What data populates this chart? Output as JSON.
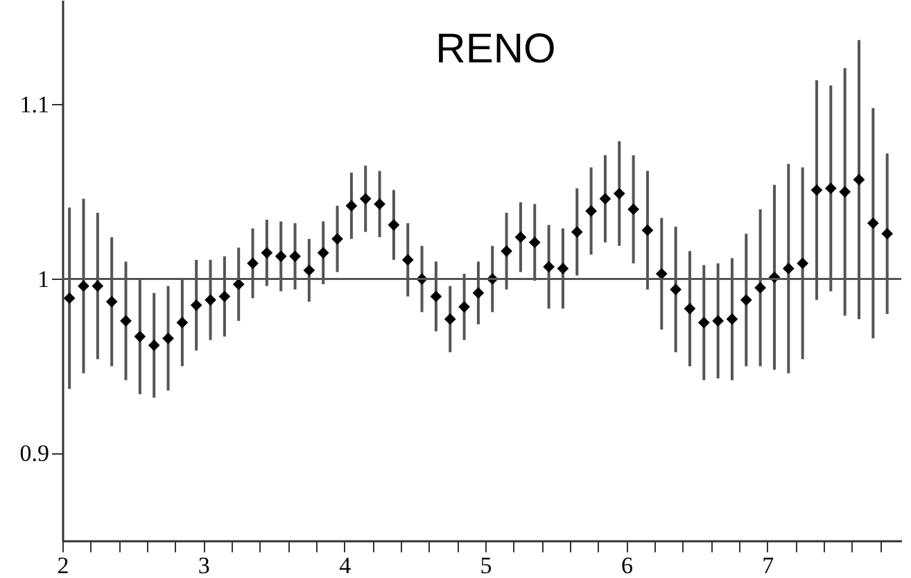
{
  "chart_data": {
    "type": "scatter",
    "title": "RENO",
    "x": [
      2.05,
      2.15,
      2.25,
      2.35,
      2.45,
      2.55,
      2.65,
      2.75,
      2.85,
      2.95,
      3.05,
      3.15,
      3.25,
      3.35,
      3.45,
      3.55,
      3.65,
      3.75,
      3.85,
      3.95,
      4.05,
      4.15,
      4.25,
      4.35,
      4.45,
      4.55,
      4.65,
      4.75,
      4.85,
      4.95,
      5.05,
      5.15,
      5.25,
      5.35,
      5.45,
      5.55,
      5.65,
      5.75,
      5.85,
      5.95,
      6.05,
      6.15,
      6.25,
      6.35,
      6.45,
      6.55,
      6.65,
      6.75,
      6.85,
      6.95,
      7.05,
      7.15,
      7.25,
      7.35,
      7.45,
      7.55,
      7.65,
      7.75,
      7.85
    ],
    "series": [
      {
        "color": "#000000",
        "values": [
          0.989,
          0.996,
          0.996,
          0.987,
          0.976,
          0.967,
          0.962,
          0.966,
          0.975,
          0.985,
          0.988,
          0.99,
          0.997,
          1.009,
          1.015,
          1.013,
          1.013,
          1.005,
          1.015,
          1.023,
          1.042,
          1.046,
          1.043,
          1.031,
          1.011,
          1.0,
          0.99,
          0.977,
          0.984,
          0.992,
          1.0,
          1.016,
          1.024,
          1.021,
          1.007,
          1.006,
          1.027,
          1.039,
          1.046,
          1.049,
          1.04,
          1.028,
          1.003,
          0.994,
          0.983,
          0.975,
          0.976,
          0.977,
          0.988,
          0.995,
          1.001,
          1.006,
          1.009,
          1.051,
          1.052,
          1.05,
          1.057,
          1.032,
          1.026
        ],
        "errors": [
          0.052,
          0.05,
          0.042,
          0.037,
          0.034,
          0.033,
          0.03,
          0.03,
          0.025,
          0.026,
          0.023,
          0.023,
          0.021,
          0.02,
          0.019,
          0.02,
          0.019,
          0.018,
          0.018,
          0.019,
          0.019,
          0.019,
          0.019,
          0.02,
          0.021,
          0.019,
          0.02,
          0.019,
          0.019,
          0.018,
          0.019,
          0.022,
          0.02,
          0.022,
          0.024,
          0.023,
          0.025,
          0.025,
          0.025,
          0.03,
          0.031,
          0.034,
          0.032,
          0.036,
          0.033,
          0.033,
          0.033,
          0.035,
          0.038,
          0.045,
          0.053,
          0.06,
          0.055,
          0.063,
          0.059,
          0.071,
          0.08,
          0.066,
          0.046
        ]
      }
    ],
    "marker": "diamond",
    "xlim": [
      2,
      7.95
    ],
    "xticks": [
      2,
      {
        "value": 2.2,
        "label": null
      },
      {
        "value": 2.4,
        "label": null
      },
      {
        "value": 2.6,
        "label": null
      },
      {
        "value": 2.8,
        "label": null
      },
      3,
      {
        "value": 3.2,
        "label": null
      },
      {
        "value": 3.4,
        "label": null
      },
      {
        "value": 3.6,
        "label": null
      },
      {
        "value": 3.8,
        "label": null
      },
      4,
      {
        "value": 4.2,
        "label": null
      },
      {
        "value": 4.4,
        "label": null
      },
      {
        "value": 4.6,
        "label": null
      },
      {
        "value": 4.8,
        "label": null
      },
      5,
      {
        "value": 5.2,
        "label": null
      },
      {
        "value": 5.4,
        "label": null
      },
      {
        "value": 5.6,
        "label": null
      },
      {
        "value": 5.8,
        "label": null
      },
      6,
      {
        "value": 6.2,
        "label": null
      },
      {
        "value": 6.4,
        "label": null
      },
      {
        "value": 6.6,
        "label": null
      },
      {
        "value": 6.8,
        "label": null
      },
      7,
      {
        "value": 7.2,
        "label": null
      },
      {
        "value": 7.4,
        "label": null
      },
      {
        "value": 7.6,
        "label": null
      },
      {
        "value": 7.8,
        "label": null
      }
    ],
    "ylim": [
      0.85,
      1.16
    ],
    "yticks": [
      0.9,
      1,
      1.1
    ],
    "ref_lines": [
      {
        "axis": "y",
        "value": 1,
        "color": "#555555"
      }
    ],
    "grid": false,
    "legend": false
  }
}
